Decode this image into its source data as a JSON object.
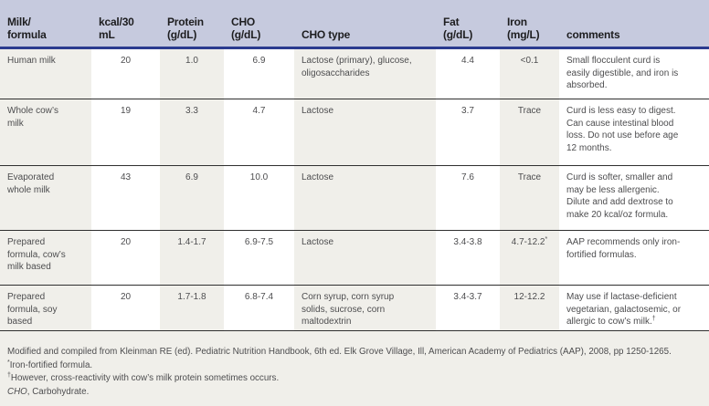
{
  "colors": {
    "header_bg": "#c6cade",
    "header_rule": "#2b3b8f",
    "column_band_bg": "#f0efea",
    "row_divider": "#2f2f2f",
    "body_text": "#4d4d4f",
    "header_text": "#1d1d1f"
  },
  "header": {
    "columns": [
      "Milk/\nformula",
      "kcal/30\nmL",
      "Protein\n(g/dL)",
      "CHO\n(g/dL)",
      "CHO type",
      "Fat\n(g/dL)",
      "Iron\n(mg/L)",
      "comments"
    ]
  },
  "rows": [
    {
      "milk": "Human milk",
      "kcal": "20",
      "protein": "1.0",
      "cho": "6.9",
      "cho_type": "Lactose (primary), glucose, oligosaccharides",
      "fat": "4.4",
      "iron": "<0.1",
      "iron_sup": "",
      "comments": "Small flocculent curd is easily digestible, and iron is absorbed.",
      "comments_sup": ""
    },
    {
      "milk": "Whole cow’s milk",
      "kcal": "19",
      "protein": "3.3",
      "cho": "4.7",
      "cho_type": "Lactose",
      "fat": "3.7",
      "iron": "Trace",
      "iron_sup": "",
      "comments": "Curd is less easy to digest. Can cause intestinal blood loss. Do not use before age 12 months.",
      "comments_sup": ""
    },
    {
      "milk": "Evaporated whole milk",
      "kcal": "43",
      "protein": "6.9",
      "cho": "10.0",
      "cho_type": "Lactose",
      "fat": "7.6",
      "iron": "Trace",
      "iron_sup": "",
      "comments": "Curd is softer, smaller and may be less allergenic. Dilute and add dextrose to make 20 kcal/oz formula.",
      "comments_sup": ""
    },
    {
      "milk": "Prepared formula, cow’s milk based",
      "kcal": "20",
      "protein": "1.4-1.7",
      "cho": "6.9-7.5",
      "cho_type": "Lactose",
      "fat": "3.4-3.8",
      "iron": "4.7-12.2",
      "iron_sup": "*",
      "comments": "AAP recommends only iron-fortified formulas.",
      "comments_sup": ""
    },
    {
      "milk": "Prepared formula, soy based",
      "kcal": "20",
      "protein": "1.7-1.8",
      "cho": "6.8-7.4",
      "cho_type": "Corn syrup, corn syrup solids, sucrose, corn maltodextrin",
      "fat": "3.4-3.7",
      "iron": "12-12.2",
      "iron_sup": "",
      "comments": "May use if lactase-deficient vegetarian, galactosemic, or allergic to cow’s milk.",
      "comments_sup": "†"
    }
  ],
  "footnotes": {
    "source": "Modified and compiled from Kleinman RE (ed). Pediatric Nutrition Handbook, 6th ed. Elk Grove Village, Ill, American Academy of Pediatrics (AAP), 2008, pp 1250-1265.",
    "iron_sup": "*",
    "iron_note": "Iron-fortified formula.",
    "cross_sup": "†",
    "cross_note": "However, cross-reactivity with cow’s milk protein sometimes occurs.",
    "abbr_term": "CHO",
    "abbr_rest": ", Carbohydrate."
  }
}
